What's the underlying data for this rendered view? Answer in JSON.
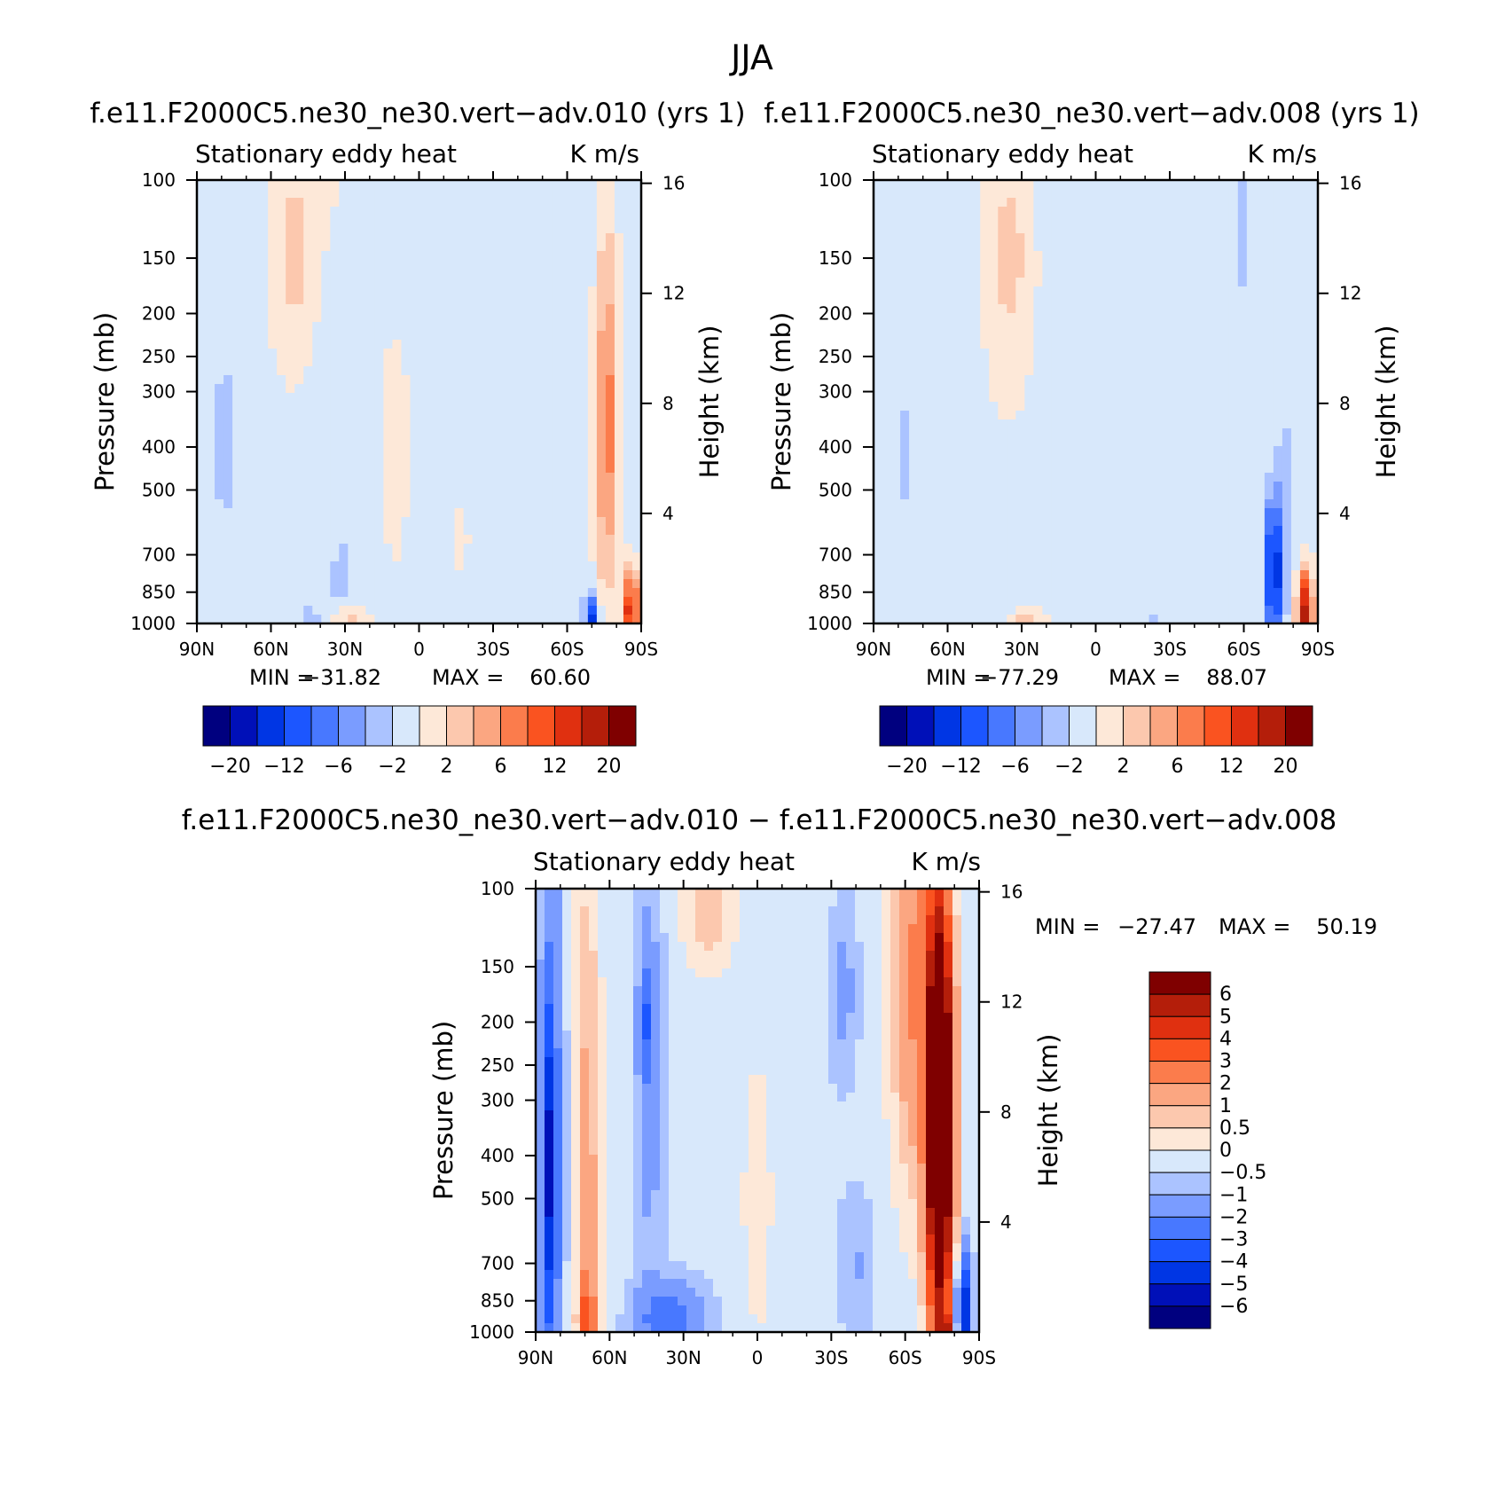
{
  "figure": {
    "title": "JJA",
    "colors": {
      "palette": [
        "#00007f",
        "#0010b8",
        "#0036e4",
        "#1c56ff",
        "#4878ff",
        "#7a9cff",
        "#abc3ff",
        "#d8e8fb",
        "#fde8d8",
        "#fcc8ae",
        "#fba681",
        "#fb7c4c",
        "#fa5320",
        "#e03010",
        "#b41e0a",
        "#7f0000"
      ],
      "background": "#ffffff",
      "axis": "#000000"
    }
  },
  "chart_data": [
    {
      "type": "contour",
      "title": "f.e11.F2000C5.ne30_ne30.vert−adv.010 (yrs 1)",
      "left_label": "Stationary eddy heat",
      "right_label": "K m/s",
      "xlabel": "",
      "ylabel": "Pressure (mb)",
      "ylabel_right": "Height (km)",
      "x_ticks": [
        "90N",
        "60N",
        "30N",
        "0",
        "30S",
        "60S",
        "90S"
      ],
      "y_ticks": [
        "100",
        "150",
        "200",
        "250",
        "300",
        "400",
        "500",
        "700",
        "850",
        "1000"
      ],
      "y_ticks_right": [
        "16",
        "12",
        "8",
        "4"
      ],
      "stats": {
        "min_label": "MIN =",
        "min": "−31.82",
        "max_label": "MAX =",
        "max": "60.60"
      },
      "colorbar": {
        "orientation": "horizontal",
        "labels": [
          "−20",
          "−12",
          "−6",
          "−2",
          "2",
          "6",
          "12",
          "20"
        ]
      },
      "features": [
        {
          "lat": 52,
          "p": 130,
          "w": 12,
          "h": 0.9,
          "v": 1.5
        },
        {
          "lat": 50,
          "p": 150,
          "w": 6,
          "h": 0.35,
          "v": 2.6
        },
        {
          "lat": 40,
          "p": 100,
          "w": 10,
          "h": 0.35,
          "v": 0.8
        },
        {
          "lat": 79,
          "p": 400,
          "w": 4,
          "h": 0.6,
          "v": -1.5
        },
        {
          "lat": 79,
          "p": 380,
          "w": 2,
          "h": 0.3,
          "v": -2.5
        },
        {
          "lat": 10,
          "p": 400,
          "w": 16,
          "h": 1.6,
          "v": 0.8
        },
        {
          "lat": -18,
          "p": 650,
          "w": 10,
          "h": 0.8,
          "v": 0.7
        },
        {
          "lat": -76,
          "p": 380,
          "w": 4.5,
          "h": 0.8,
          "v": 5.5
        },
        {
          "lat": -76,
          "p": 250,
          "w": 4,
          "h": 1.2,
          "v": 2.8
        },
        {
          "lat": -86,
          "p": 950,
          "w": 3,
          "h": 0.2,
          "v": 16
        },
        {
          "lat": -70,
          "p": 980,
          "w": 3,
          "h": 0.12,
          "v": -12
        },
        {
          "lat": 31,
          "p": 800,
          "w": 5,
          "h": 0.25,
          "v": -2.5
        },
        {
          "lat": 30,
          "p": 990,
          "w": 7,
          "h": 0.08,
          "v": 4
        },
        {
          "lat": 44,
          "p": 990,
          "w": 4,
          "h": 0.08,
          "v": -3
        },
        {
          "lat": -22,
          "p": 985,
          "w": 10,
          "h": 0.1,
          "v": -1.6
        }
      ]
    },
    {
      "type": "contour",
      "title": "f.e11.F2000C5.ne30_ne30.vert−adv.008 (yrs 1)",
      "left_label": "Stationary eddy heat",
      "right_label": "K m/s",
      "xlabel": "",
      "ylabel": "Pressure (mb)",
      "ylabel_right": "Height (km)",
      "x_ticks": [
        "90N",
        "60N",
        "30N",
        "0",
        "30S",
        "60S",
        "90S"
      ],
      "y_ticks": [
        "100",
        "150",
        "200",
        "250",
        "300",
        "400",
        "500",
        "700",
        "850",
        "1000"
      ],
      "y_ticks_right": [
        "16",
        "12",
        "8",
        "4"
      ],
      "stats": {
        "min_label": "MIN =",
        "min": "−77.29",
        "max_label": "MAX =",
        "max": "88.07"
      },
      "colorbar": {
        "orientation": "horizontal",
        "labels": [
          "−20",
          "−12",
          "−6",
          "−2",
          "2",
          "6",
          "12",
          "20"
        ]
      },
      "features": [
        {
          "lat": 36,
          "p": 140,
          "w": 12,
          "h": 1.0,
          "v": 1.6
        },
        {
          "lat": 35,
          "p": 150,
          "w": 6,
          "h": 0.35,
          "v": 2.6
        },
        {
          "lat": -59,
          "p": 130,
          "w": 5,
          "h": 0.8,
          "v": -1.5
        },
        {
          "lat": 77,
          "p": 420,
          "w": 5,
          "h": 0.9,
          "v": -1.4
        },
        {
          "lat": 10,
          "p": 450,
          "w": 14,
          "h": 1.3,
          "v": 0.6
        },
        {
          "lat": -15,
          "p": 700,
          "w": 8,
          "h": 0.5,
          "v": 0.6
        },
        {
          "lat": -72,
          "p": 760,
          "w": 3,
          "h": 0.35,
          "v": -16
        },
        {
          "lat": -76,
          "p": 500,
          "w": 3,
          "h": 0.9,
          "v": -1.8
        },
        {
          "lat": -85,
          "p": 940,
          "w": 3,
          "h": 0.2,
          "v": 18
        },
        {
          "lat": 30,
          "p": 990,
          "w": 7,
          "h": 0.08,
          "v": 4
        },
        {
          "lat": 35,
          "p": 830,
          "w": 7,
          "h": 0.35,
          "v": -1.2
        },
        {
          "lat": -22,
          "p": 985,
          "w": 10,
          "h": 0.1,
          "v": -1.5
        }
      ]
    },
    {
      "type": "contour",
      "title": "f.e11.F2000C5.ne30_ne30.vert−adv.010 − f.e11.F2000C5.ne30_ne30.vert−adv.008",
      "left_label": "Stationary eddy heat",
      "right_label": "K m/s",
      "xlabel": "",
      "ylabel": "Pressure (mb)",
      "ylabel_right": "Height (km)",
      "x_ticks": [
        "90N",
        "60N",
        "30N",
        "0",
        "30S",
        "60S",
        "90S"
      ],
      "y_ticks": [
        "100",
        "150",
        "200",
        "250",
        "300",
        "400",
        "500",
        "700",
        "850",
        "1000"
      ],
      "y_ticks_right": [
        "16",
        "12",
        "8",
        "4"
      ],
      "stats": {
        "min_label": "MIN =",
        "min": "−27.47",
        "max_label": "MAX =",
        "max": "50.19"
      },
      "colorbar": {
        "orientation": "vertical",
        "labels": [
          "6",
          "5",
          "4",
          "3",
          "2",
          "1",
          "0.5",
          "0",
          "−0.5",
          "−1",
          "−2",
          "−3",
          "−4",
          "−5",
          "−6"
        ]
      },
      "features": [
        {
          "lat": 84,
          "p": 400,
          "w": 5,
          "h": 1.6,
          "v": -2.2
        },
        {
          "lat": 84,
          "p": 420,
          "w": 2.5,
          "h": 0.8,
          "v": -3.2
        },
        {
          "lat": 69,
          "p": 500,
          "w": 5,
          "h": 1.8,
          "v": 1.6
        },
        {
          "lat": 69,
          "p": 950,
          "w": 3,
          "h": 0.25,
          "v": 2.8
        },
        {
          "lat": 44,
          "p": 250,
          "w": 6,
          "h": 1.2,
          "v": -1.2
        },
        {
          "lat": 45,
          "p": 200,
          "w": 2.5,
          "h": 0.3,
          "v": -1.8
        },
        {
          "lat": 35,
          "p": 950,
          "w": 14,
          "h": 0.2,
          "v": -2.4
        },
        {
          "lat": 20,
          "p": 110,
          "w": 10,
          "h": 0.3,
          "v": 1.2
        },
        {
          "lat": -35,
          "p": 170,
          "w": 6,
          "h": 0.5,
          "v": -1.0
        },
        {
          "lat": -64,
          "p": 160,
          "w": 9,
          "h": 1.0,
          "v": 2.4
        },
        {
          "lat": -74,
          "p": 380,
          "w": 5,
          "h": 1.0,
          "v": 10
        },
        {
          "lat": -74,
          "p": 200,
          "w": 5,
          "h": 1.0,
          "v": 3.5
        },
        {
          "lat": -84,
          "p": 900,
          "w": 3,
          "h": 0.3,
          "v": -5
        },
        {
          "lat": -77,
          "p": 990,
          "w": 3,
          "h": 0.08,
          "v": 3
        },
        {
          "lat": -40,
          "p": 700,
          "w": 8,
          "h": 0.4,
          "v": -0.8
        },
        {
          "lat": 0,
          "p": 500,
          "w": 8,
          "h": 1.0,
          "v": 0.4
        }
      ]
    }
  ]
}
